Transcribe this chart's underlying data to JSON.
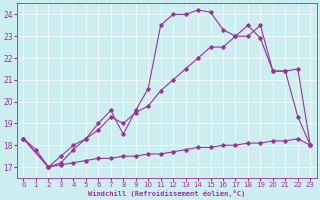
{
  "xlabel": "Windchill (Refroidissement éolien,°C)",
  "bg_color": "#cceef0",
  "line_color": "#993399",
  "grid_color": "#ffffff",
  "xlim": [
    -0.5,
    23.5
  ],
  "ylim": [
    16.5,
    24.5
  ],
  "yticks": [
    17,
    18,
    19,
    20,
    21,
    22,
    23,
    24
  ],
  "xticks": [
    0,
    1,
    2,
    3,
    4,
    5,
    6,
    7,
    8,
    9,
    10,
    11,
    12,
    13,
    14,
    15,
    16,
    17,
    18,
    19,
    20,
    21,
    22,
    23
  ],
  "line1_x": [
    0,
    1,
    2,
    3,
    4,
    5,
    6,
    7,
    8,
    9,
    10,
    11,
    12,
    13,
    14,
    15,
    16,
    17,
    18,
    19,
    20,
    21,
    22,
    23
  ],
  "line1_y": [
    18.3,
    17.8,
    17.0,
    17.1,
    17.2,
    17.3,
    17.4,
    17.4,
    17.5,
    17.5,
    17.6,
    17.6,
    17.7,
    17.8,
    17.9,
    17.9,
    18.0,
    18.0,
    18.1,
    18.1,
    18.2,
    18.2,
    18.3,
    18.0
  ],
  "line2_x": [
    0,
    2,
    3,
    4,
    5,
    6,
    7,
    8,
    9,
    10,
    11,
    12,
    13,
    14,
    15,
    16,
    17,
    18,
    19,
    20,
    21,
    22,
    23
  ],
  "line2_y": [
    18.3,
    17.0,
    17.2,
    17.8,
    18.3,
    19.0,
    19.6,
    18.5,
    19.6,
    20.6,
    23.5,
    24.0,
    24.0,
    24.2,
    24.1,
    23.3,
    23.0,
    23.5,
    22.9,
    21.4,
    21.4,
    19.3,
    18.0
  ],
  "line3_x": [
    0,
    2,
    3,
    4,
    5,
    6,
    7,
    8,
    9,
    10,
    11,
    12,
    13,
    14,
    15,
    16,
    17,
    18,
    19,
    20,
    21,
    22,
    23
  ],
  "line3_y": [
    18.3,
    17.0,
    17.5,
    18.0,
    18.3,
    18.7,
    19.3,
    19.0,
    19.5,
    19.8,
    20.5,
    21.0,
    21.5,
    22.0,
    22.5,
    22.5,
    23.0,
    23.0,
    23.5,
    21.4,
    21.4,
    21.5,
    18.0
  ]
}
